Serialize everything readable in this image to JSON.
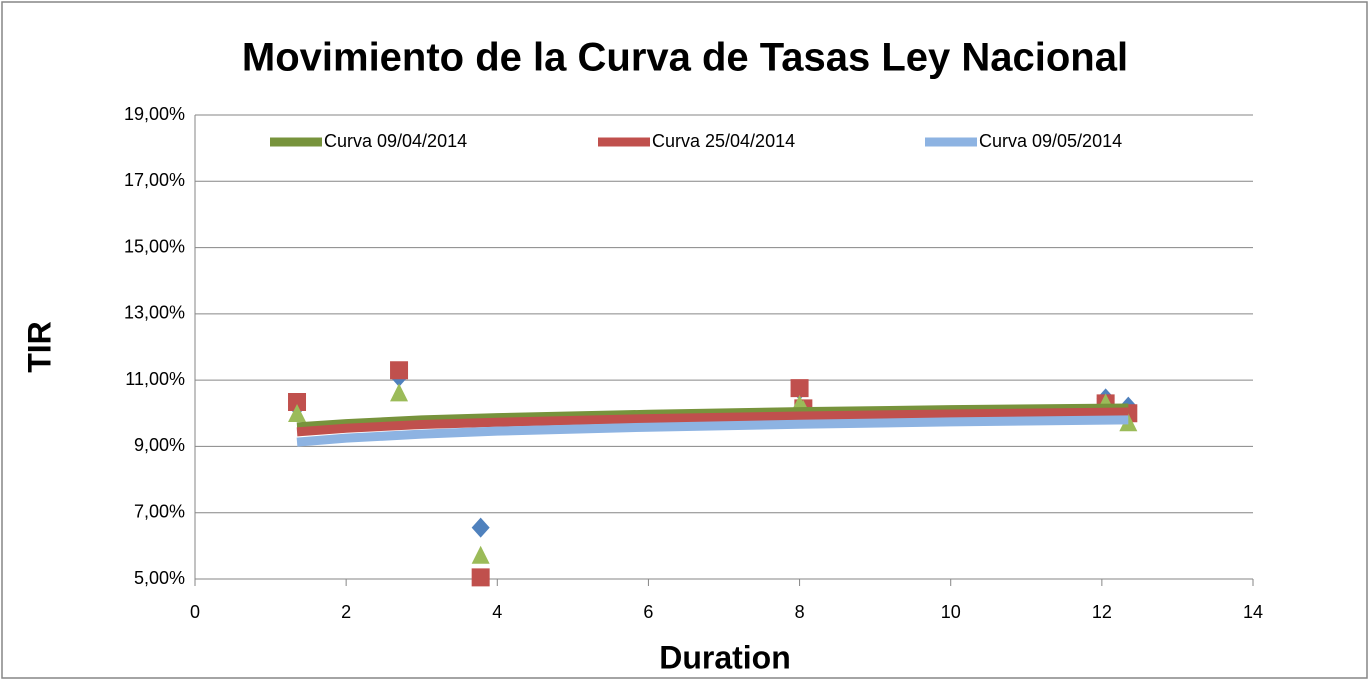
{
  "chart_data": {
    "type": "scatter",
    "title": "Movimiento de la Curva de Tasas Ley Nacional",
    "x_label": "Duration",
    "y_label": "TIR",
    "xlim": [
      0,
      14
    ],
    "xticks": [
      0,
      2,
      4,
      6,
      8,
      10,
      12,
      14
    ],
    "ylim": [
      5,
      19
    ],
    "yticks": [
      {
        "value": 5,
        "label": "5,00%"
      },
      {
        "value": 7,
        "label": "7,00%"
      },
      {
        "value": 9,
        "label": "9,00%"
      },
      {
        "value": 11,
        "label": "11,00%"
      },
      {
        "value": 13,
        "label": "13,00%"
      },
      {
        "value": 15,
        "label": "15,00%"
      },
      {
        "value": 17,
        "label": "17,00%"
      },
      {
        "value": 19,
        "label": "19,00%"
      }
    ],
    "grid": true,
    "legend": "top",
    "series": [
      {
        "marker": "diamond",
        "color": "#4f81bd",
        "x": [
          1.35,
          2.7,
          3.78,
          8,
          8.05,
          12.05,
          12.35
        ],
        "values": [
          10.2,
          11.1,
          6.55,
          10.7,
          9.9,
          10.45,
          10.2
        ]
      },
      {
        "marker": "square",
        "color": "#c0504d",
        "x": [
          1.35,
          2.7,
          3.78,
          8,
          8.05,
          12.05,
          12.35
        ],
        "values": [
          10.34,
          11.3,
          5.05,
          10.76,
          10.15,
          10.3,
          10.0
        ]
      },
      {
        "marker": "triangle",
        "color": "#9bbb59",
        "x": [
          1.35,
          2.7,
          3.78,
          8,
          8.05,
          12.05,
          12.35
        ],
        "values": [
          9.98,
          10.6,
          5.7,
          10.25,
          10.1,
          10.3,
          9.7
        ]
      }
    ],
    "curves": [
      {
        "name": "Curva 09/04/2014",
        "color": "#77933c",
        "x": [
          1.35,
          2,
          3,
          4,
          6,
          8,
          10,
          12.35
        ],
        "values": [
          9.59,
          9.69,
          9.8,
          9.87,
          9.97,
          10.05,
          10.11,
          10.16
        ]
      },
      {
        "name": "Curva 25/04/2014",
        "color": "#c0504d",
        "x": [
          1.35,
          2,
          3,
          4,
          6,
          8,
          10,
          12.35
        ],
        "values": [
          9.44,
          9.55,
          9.66,
          9.73,
          9.84,
          9.92,
          9.98,
          10.04
        ]
      },
      {
        "name": "Curva 09/05/2014",
        "color": "#8db3e2",
        "x": [
          1.35,
          2,
          3,
          4,
          6,
          8,
          10,
          12.35
        ],
        "values": [
          9.13,
          9.25,
          9.37,
          9.46,
          9.58,
          9.67,
          9.74,
          9.8
        ]
      }
    ]
  }
}
